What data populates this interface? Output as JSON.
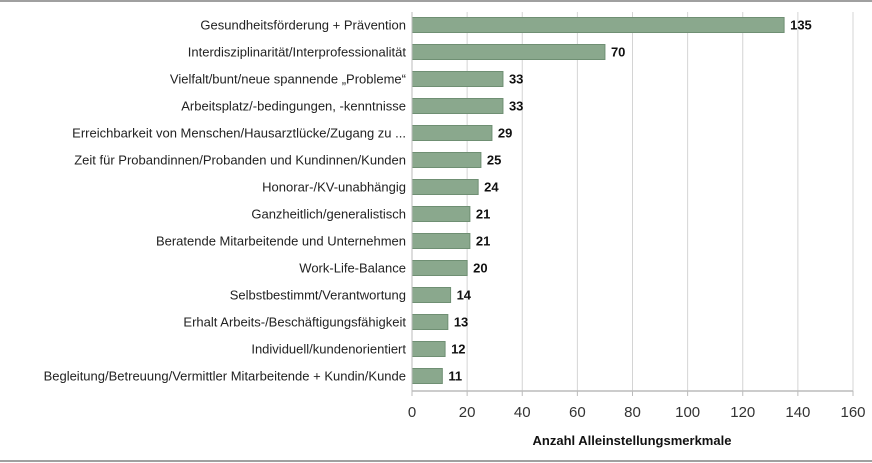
{
  "chart_data": {
    "type": "bar",
    "orientation": "horizontal",
    "categories": [
      "Gesundheitsförderung + Prävention",
      "Interdisziplinarität/Interprofessionalität",
      "Vielfalt/bunt/neue spannende „Probleme“",
      "Arbeitsplatz/-bedingungen, -kenntnisse",
      "Erreichbarkeit von Menschen/Hausarztlücke/Zugang zu ...",
      "Zeit für Probandinnen/Probanden und Kundinnen/Kunden",
      "Honorar-/KV-unabhängig",
      "Ganzheitlich/generalistisch",
      "Beratende Mitarbeitende und Unternehmen",
      "Work-Life-Balance",
      "Selbstbestimmt/Verantwortung",
      "Erhalt Arbeits-/Beschäftigungsfähigkeit",
      "Individuell/kundenorientiert",
      "Begleitung/Betreuung/Vermittler Mitarbeitende + Kundin/Kunde"
    ],
    "values": [
      135,
      70,
      33,
      33,
      29,
      25,
      24,
      21,
      21,
      20,
      14,
      13,
      12,
      11
    ],
    "xlabel": "Anzahl Alleinstellungsmerkmale",
    "ylabel": "",
    "xlim": [
      0,
      160
    ],
    "xticks": [
      0,
      20,
      40,
      60,
      80,
      100,
      120,
      140,
      160
    ],
    "grid": true,
    "data_labels": true,
    "colors": {
      "bar": "#8aa88d",
      "bar_border": "#6f8f73",
      "grid": "#d4d4d4",
      "frame": "#a0a0a0"
    }
  }
}
